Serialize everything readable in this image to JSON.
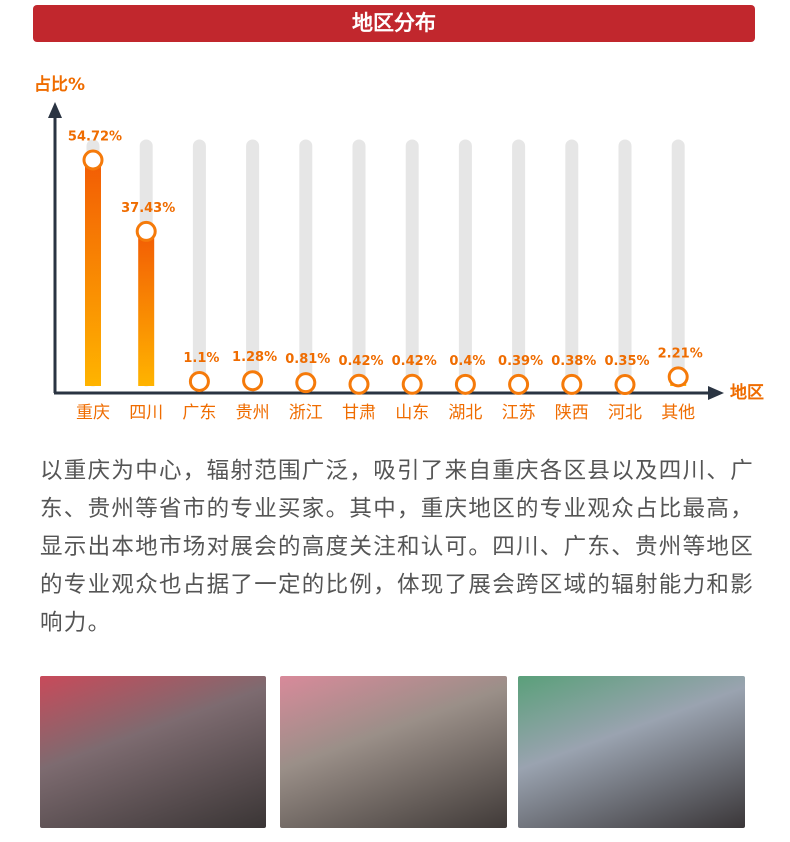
{
  "chart_data": {
    "type": "bar",
    "title": "地区分布",
    "y_label": "占比%",
    "x_label": "地区",
    "categories": [
      "重庆",
      "四川",
      "广东",
      "贵州",
      "浙江",
      "甘肃",
      "山东",
      "湖北",
      "江苏",
      "陕西",
      "河北",
      "其他"
    ],
    "values": [
      54.72,
      37.43,
      1.1,
      1.28,
      0.81,
      0.42,
      0.42,
      0.4,
      0.39,
      0.38,
      0.35,
      2.21
    ],
    "value_labels": [
      "54.72%",
      "37.43%",
      "1.1%",
      "1.28%",
      "0.81%",
      "0.42%",
      "0.42%",
      "0.4%",
      "0.39%",
      "0.38%",
      "0.35%",
      "2.21%"
    ],
    "color": "#f57a0a"
  },
  "description": "以重庆为中心，辐射范围广泛，吸引了来自重庆各区县以及四川、广东、贵州等省市的专业买家。其中，重庆地区的专业观众占比最高，显示出本地市场对展会的高度关注和认可。四川、广东、贵州等地区的专业观众也占据了一定的比例，体现了展会跨区域的辐射能力和影响力。"
}
